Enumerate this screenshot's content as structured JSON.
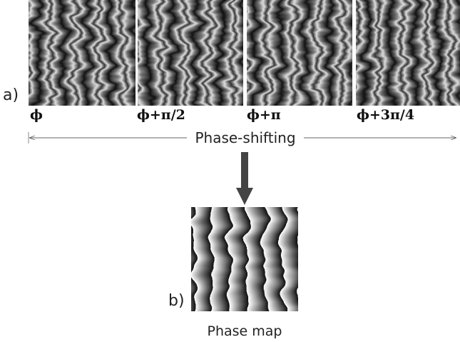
{
  "panel_a": {
    "label": "a)",
    "frames": [
      {
        "label": "ϕ"
      },
      {
        "label": "ϕ+π/2"
      },
      {
        "label": "ϕ+π"
      },
      {
        "label": "ϕ+3π/4"
      }
    ],
    "arrow_label": "Phase-shifting"
  },
  "panel_b": {
    "label": "b)",
    "caption": "Phase map"
  }
}
